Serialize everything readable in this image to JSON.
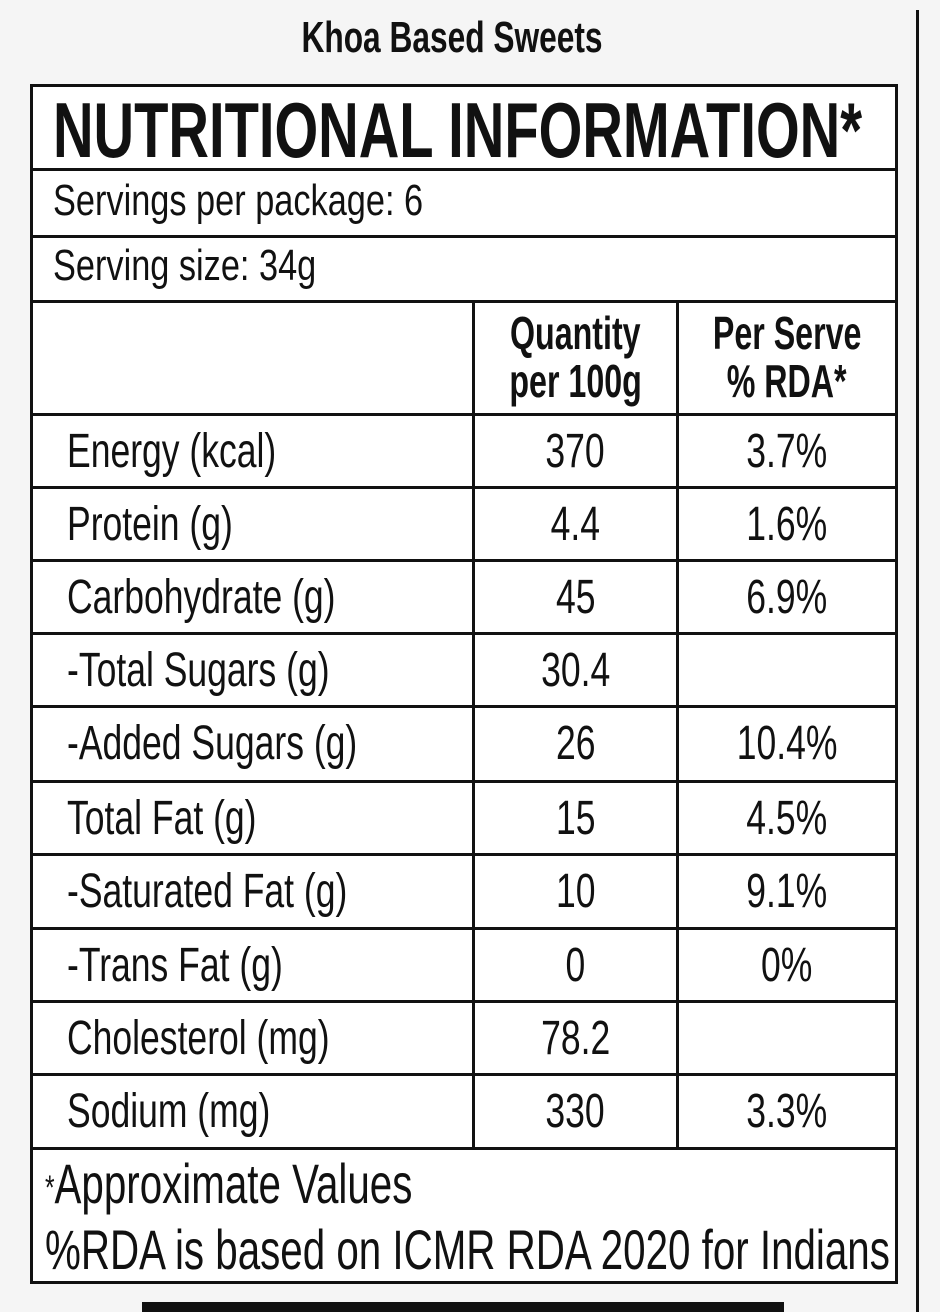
{
  "product": {
    "title": "Khoa Based Sweets"
  },
  "label": {
    "heading": "NUTRITIONAL INFORMATION*",
    "servings_per_package": "Servings per package: 6",
    "serving_size": "Serving size: 34g",
    "columns": {
      "nutrient": "",
      "quantity_line1": "Quantity",
      "quantity_line2": "per 100g",
      "rda_line1": "Per Serve",
      "rda_line2": "% RDA*"
    },
    "rows": [
      {
        "nutrient": "Energy (kcal)",
        "quantity": "370",
        "rda": "3.7%"
      },
      {
        "nutrient": "Protein (g)",
        "quantity": "4.4",
        "rda": "1.6%"
      },
      {
        "nutrient": "Carbohydrate (g)",
        "quantity": "45",
        "rda": "6.9%"
      },
      {
        "nutrient": "-Total Sugars (g)",
        "quantity": "30.4",
        "rda": ""
      },
      {
        "nutrient": "-Added Sugars (g)",
        "quantity": "26",
        "rda": "10.4%"
      },
      {
        "nutrient": "Total Fat (g)",
        "quantity": "15",
        "rda": "4.5%"
      },
      {
        "nutrient": "-Saturated Fat (g)",
        "quantity": "10",
        "rda": "9.1%"
      },
      {
        "nutrient": "-Trans Fat (g)",
        "quantity": "0",
        "rda": "0%"
      },
      {
        "nutrient": "Cholesterol (mg)",
        "quantity": "78.2",
        "rda": ""
      },
      {
        "nutrient": "Sodium (mg)",
        "quantity": "330",
        "rda": "3.3%"
      }
    ],
    "footnote_asterisk": "*",
    "footnote_1": "Approximate Values",
    "footnote_2": "%RDA is based on ICMR RDA 2020 for Indians"
  }
}
